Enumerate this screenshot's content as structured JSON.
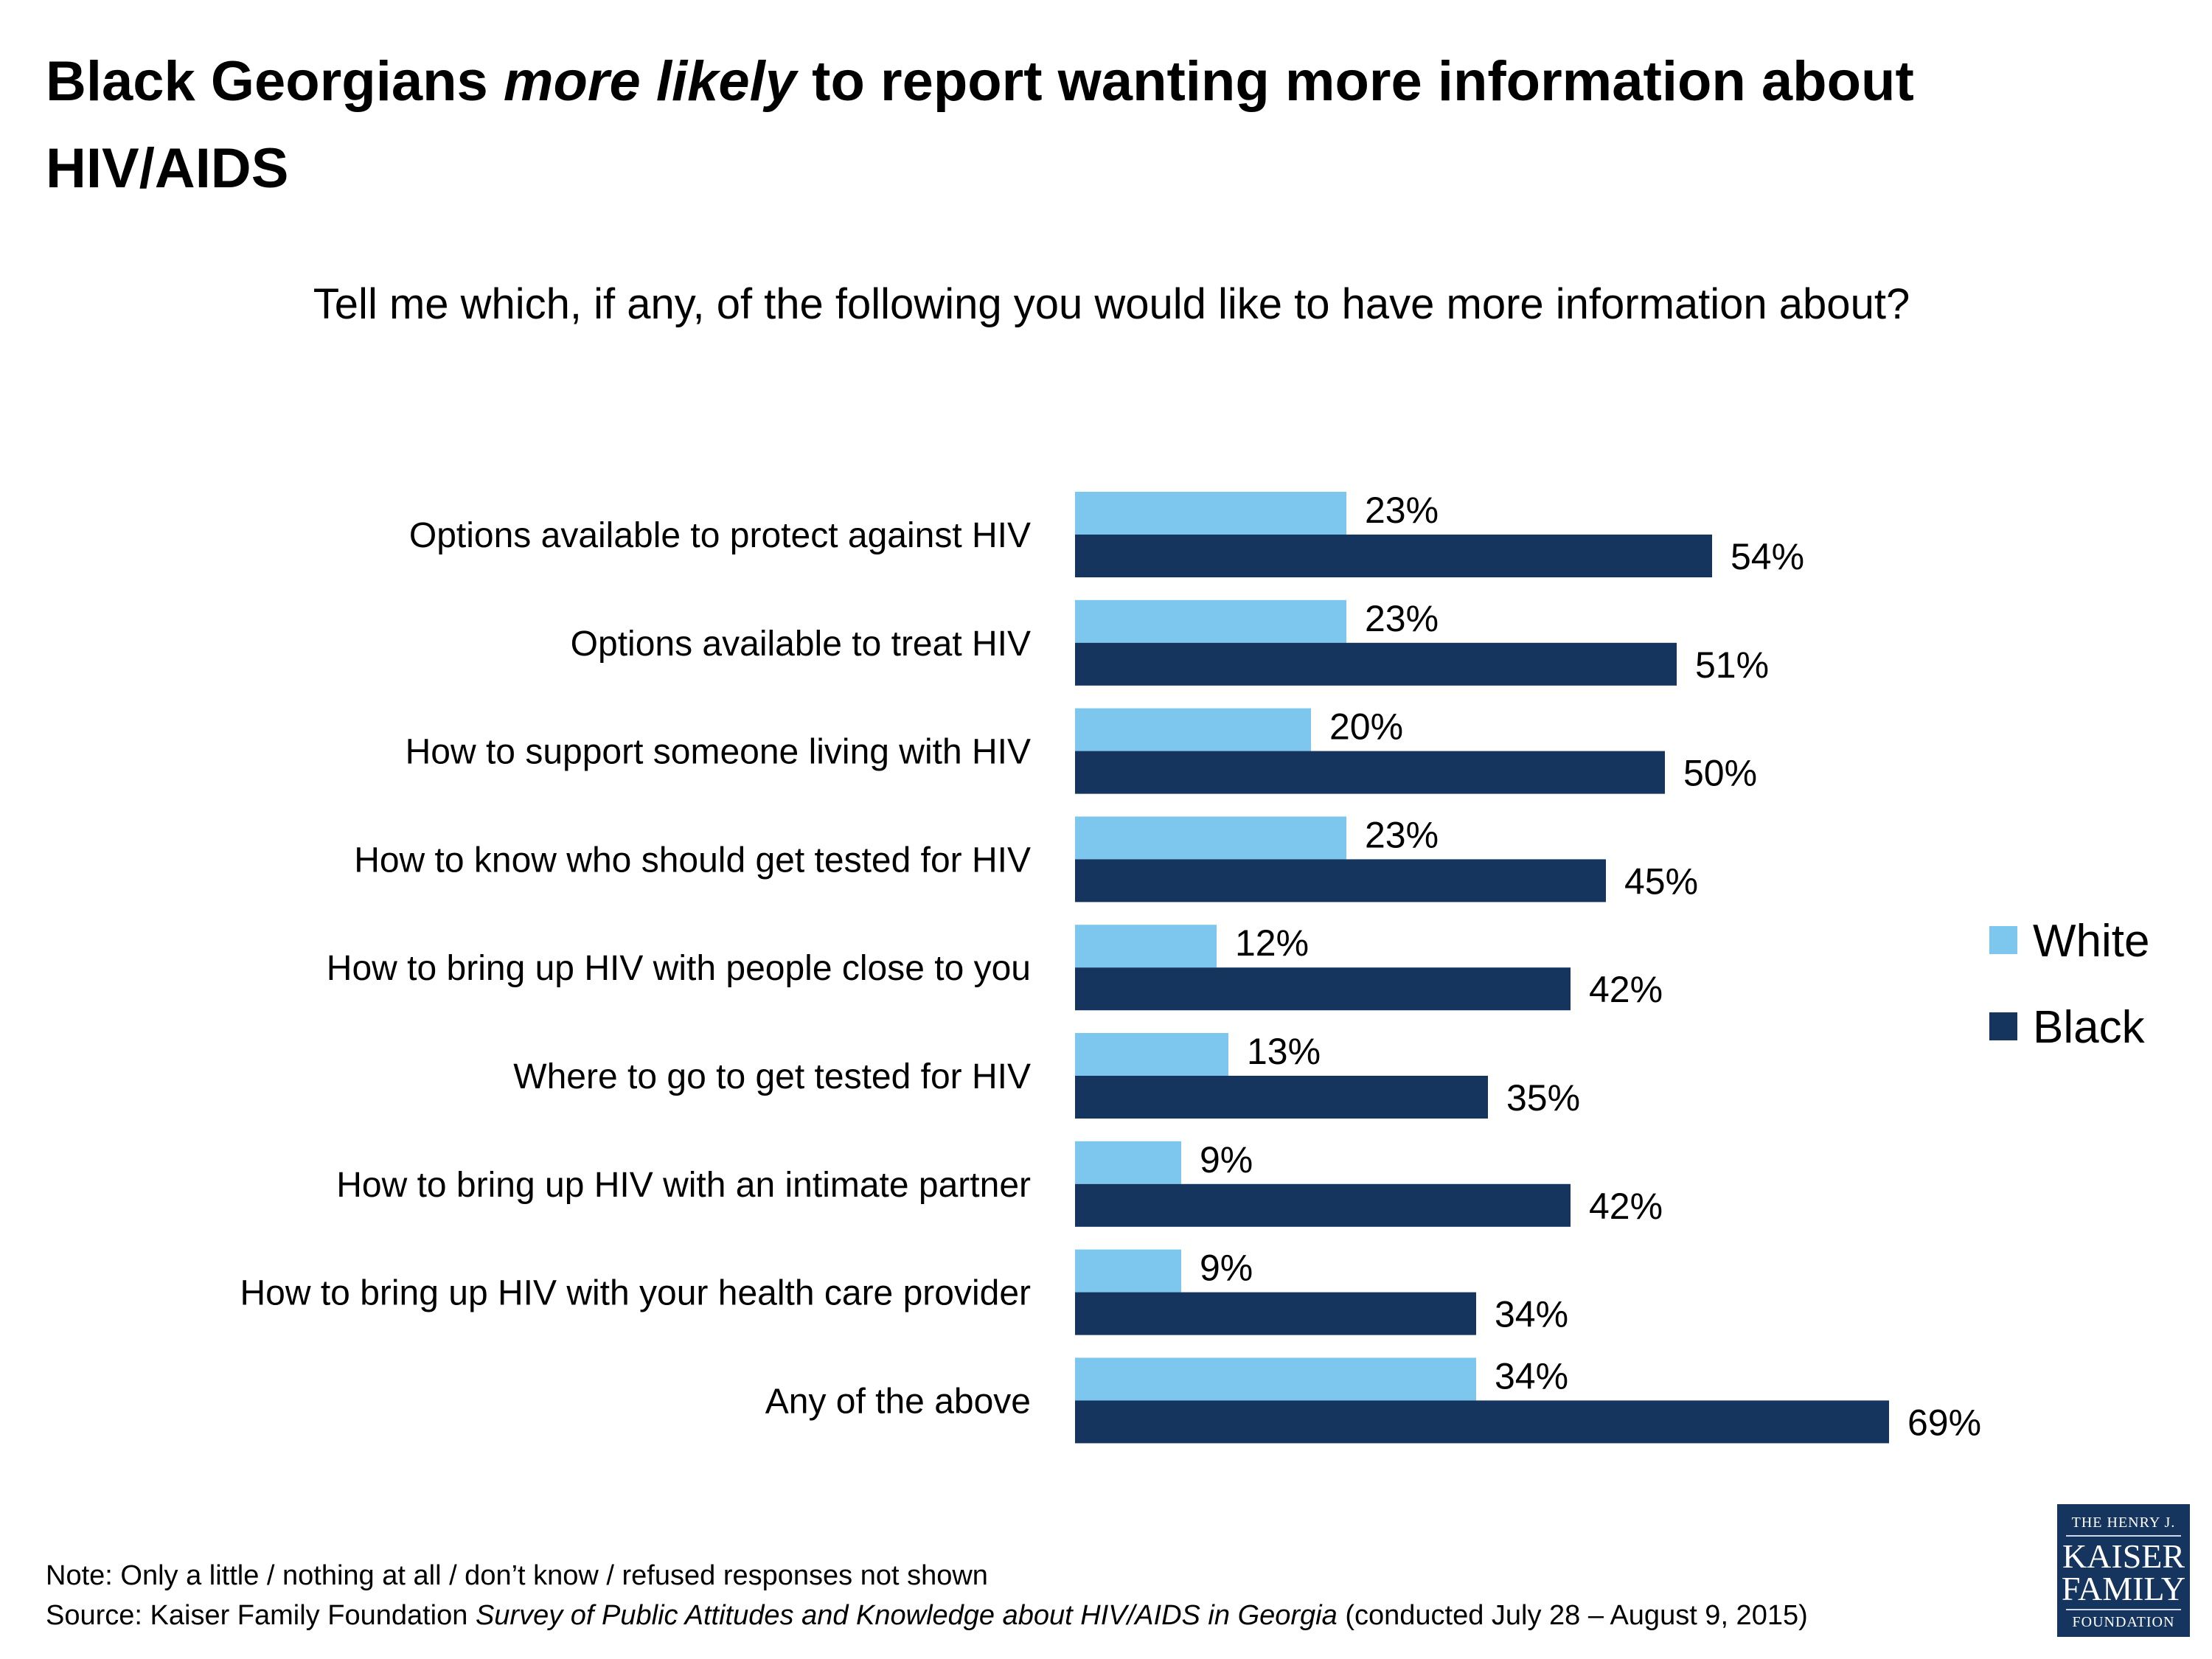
{
  "title": {
    "pre": "Black Georgians ",
    "emph": "more likely",
    "post": " to report wanting more information about HIV/AIDS"
  },
  "subtitle": "Tell me which, if any, of the following you would like to have more information about?",
  "chart_data": {
    "type": "bar",
    "orientation": "horizontal",
    "categories": [
      "Options available to protect against HIV",
      "Options available to treat HIV",
      "How to support someone living with HIV",
      "How to know who should get tested for HIV",
      "How to bring up HIV with people close to you",
      "Where to go to get tested for HIV",
      "How to bring up HIV with an intimate partner",
      "How to bring up HIV with your health care provider",
      "Any of the above"
    ],
    "series": [
      {
        "name": "White",
        "color": "#7dc6ee",
        "values": [
          23,
          23,
          20,
          23,
          12,
          13,
          9,
          9,
          34
        ]
      },
      {
        "name": "Black",
        "color": "#15355f",
        "values": [
          54,
          51,
          50,
          45,
          42,
          35,
          42,
          34,
          69
        ]
      }
    ],
    "value_format": "percent",
    "xlim": [
      0,
      100
    ],
    "grid": false,
    "legend": "right"
  },
  "note": "Note: Only a little / nothing at all / don’t know / refused responses not shown",
  "source": {
    "pre": "Source: Kaiser Family Foundation ",
    "emph": "Survey of Public Attitudes and Knowledge about HIV/AIDS in Georgia",
    "post": " (conducted July 28 – August 9, 2015)"
  },
  "logo": {
    "line1": "THE HENRY J.",
    "line2": "KAISER",
    "line3": "FAMILY",
    "line4": "FOUNDATION"
  }
}
